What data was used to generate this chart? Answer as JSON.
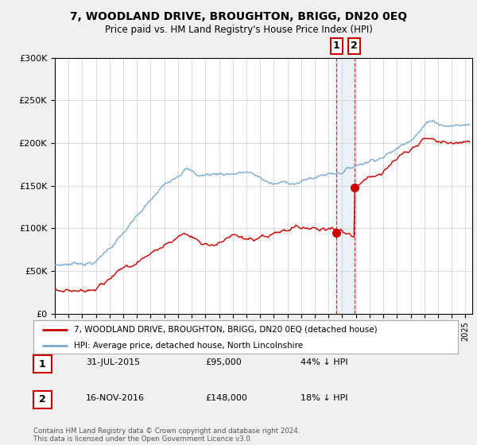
{
  "title": "7, WOODLAND DRIVE, BROUGHTON, BRIGG, DN20 0EQ",
  "subtitle": "Price paid vs. HM Land Registry's House Price Index (HPI)",
  "background_color": "#f0f0f0",
  "plot_bg_color": "#ffffff",
  "red_line_color": "#cc0000",
  "blue_line_color": "#7aabcf",
  "transaction1_date": 2015.58,
  "transaction1_price": 95000,
  "transaction2_date": 2016.88,
  "transaction2_price": 148000,
  "legend_label_red": "7, WOODLAND DRIVE, BROUGHTON, BRIGG, DN20 0EQ (detached house)",
  "legend_label_blue": "HPI: Average price, detached house, North Lincolnshire",
  "footnote": "Contains HM Land Registry data © Crown copyright and database right 2024.\nThis data is licensed under the Open Government Licence v3.0.",
  "table_rows": [
    {
      "num": "1",
      "date": "31-JUL-2015",
      "price": "£95,000",
      "pct": "44% ↓ HPI"
    },
    {
      "num": "2",
      "date": "16-NOV-2016",
      "price": "£148,000",
      "pct": "18% ↓ HPI"
    }
  ],
  "ylim": [
    0,
    300000
  ],
  "xlim_start": 1995,
  "xlim_end": 2025.5
}
